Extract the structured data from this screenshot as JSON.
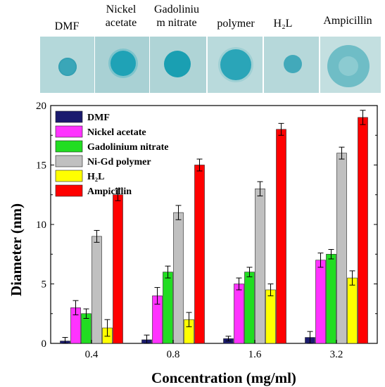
{
  "strip": {
    "labels": [
      {
        "html_lines": [
          "DMF"
        ]
      },
      {
        "html_lines": [
          "Nickel",
          "acetate"
        ]
      },
      {
        "html_lines": [
          "Gadoliniu",
          "m nitrate"
        ]
      },
      {
        "html_lines": [
          "polymer"
        ]
      },
      {
        "html_lines": [
          "H₂L"
        ]
      },
      {
        "html_lines": [
          "Ampicillin"
        ]
      }
    ],
    "colors": {
      "plate": "#a7cfd3",
      "zone": "#2f9fb3"
    }
  },
  "chart_data": {
    "type": "bar",
    "categories": [
      "0.4",
      "0.8",
      "1.6",
      "3.2"
    ],
    "xlabel": "Concentration (mg/ml)",
    "ylabel": "Diameter (nm)",
    "ylim": [
      0,
      20
    ],
    "yticks": [
      "0",
      "5",
      "10",
      "15",
      "20"
    ],
    "legend_position": "top-left",
    "series": [
      {
        "name": "DMF",
        "legend_label": "DMF",
        "color": "#1a1a6e",
        "values": [
          0.2,
          0.3,
          0.4,
          0.5
        ],
        "errors": [
          0.3,
          0.4,
          0.2,
          0.5
        ]
      },
      {
        "name": "Nickel acetate",
        "legend_label": "Nickel acetate",
        "color": "#ff33ff",
        "values": [
          3.0,
          4.0,
          5.0,
          7.0
        ],
        "errors": [
          0.6,
          0.7,
          0.5,
          0.6
        ]
      },
      {
        "name": "Gadolinium nitrate",
        "legend_label": "Gadolinium nitrate",
        "color": "#22dd22",
        "values": [
          2.5,
          6.0,
          6.0,
          7.5
        ],
        "errors": [
          0.4,
          0.5,
          0.4,
          0.4
        ]
      },
      {
        "name": "Ni-Gd polymer",
        "legend_label": "Ni-Gd polymer",
        "color": "#c0c0c0",
        "values": [
          9.0,
          11.0,
          13.0,
          16.0
        ],
        "errors": [
          0.5,
          0.6,
          0.6,
          0.5
        ]
      },
      {
        "name": "H2L",
        "legend_label": "H₂L",
        "color": "#ffff00",
        "values": [
          1.3,
          2.0,
          4.5,
          5.5
        ],
        "errors": [
          0.7,
          0.6,
          0.5,
          0.6
        ]
      },
      {
        "name": "Ampicillin",
        "legend_label": "Ampicillin",
        "color": "#ff0000",
        "values": [
          12.5,
          15.0,
          18.0,
          19.0
        ],
        "errors": [
          0.5,
          0.5,
          0.5,
          0.6
        ]
      }
    ]
  }
}
